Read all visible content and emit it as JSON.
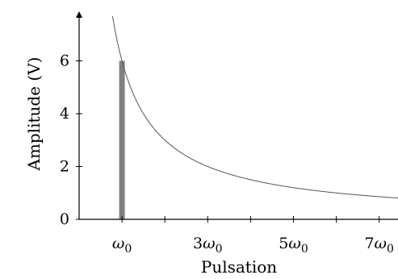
{
  "chart_data": {
    "type": "bar",
    "title": "",
    "xlabel": "Pulsation",
    "ylabel": "Amplitude (V)",
    "xlim": [
      0,
      8
    ],
    "ylim": [
      0,
      7.8
    ],
    "y_ticks": [
      0,
      2,
      4,
      6
    ],
    "x_ticks": [
      {
        "value": 1,
        "label_base": "ω",
        "label_coef": "",
        "label_sub": "0"
      },
      {
        "value": 2,
        "label_base": "",
        "label_coef": "",
        "label_sub": ""
      },
      {
        "value": 3,
        "label_base": "ω",
        "label_coef": "3",
        "label_sub": "0"
      },
      {
        "value": 4,
        "label_base": "",
        "label_coef": "",
        "label_sub": ""
      },
      {
        "value": 5,
        "label_base": "ω",
        "label_coef": "5",
        "label_sub": "0"
      },
      {
        "value": 6,
        "label_base": "",
        "label_coef": "",
        "label_sub": ""
      },
      {
        "value": 7,
        "label_base": "ω",
        "label_coef": "7",
        "label_sub": "0"
      }
    ],
    "bars": [
      {
        "x": 1,
        "value": 6
      }
    ],
    "envelope": {
      "formula": "6/x",
      "x_range": [
        0.78,
        8
      ]
    },
    "grid": false,
    "colors": {
      "bar": "#808080",
      "envelope": "#555555",
      "axis": "#000000"
    }
  }
}
